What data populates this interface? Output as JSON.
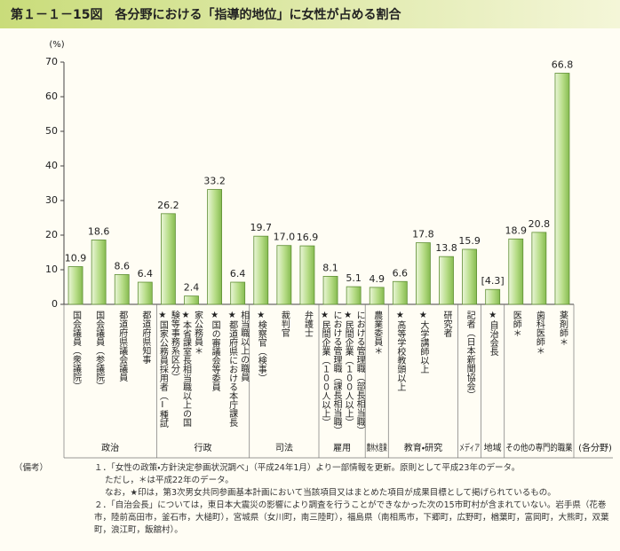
{
  "chart_data": {
    "type": "bar",
    "title": "第１－１－15図　各分野における「指導的地位」に女性が占める割合",
    "y_label": "(%)",
    "ylim": [
      0,
      70
    ],
    "yticks": [
      0,
      10,
      20,
      30,
      40,
      50,
      60,
      70
    ],
    "color": "#a8d272",
    "group_header": "(各分野)",
    "groups": [
      {
        "name": "政治",
        "categories": [
          "国会議員（衆議院）",
          "国会議員（参議院）",
          "都道府県議会議員",
          "都道府県知事"
        ],
        "values": [
          10.9,
          18.6,
          8.6,
          6.4
        ],
        "value_labels": [
          "10.9",
          "18.6",
          "8.6",
          "6.4"
        ]
      },
      {
        "name": "行政",
        "categories": [
          "★国家公務員採用者（Ⅰ種試験等事務系区分）",
          "★本省課室長相当職以上の国家公務員＊",
          "★国の審議会等委員",
          "★都道府県における本庁課長相当職以上の職員"
        ],
        "values": [
          26.2,
          2.4,
          33.2,
          6.4
        ],
        "value_labels": [
          "26.2",
          "2.4",
          "33.2",
          "6.4"
        ]
      },
      {
        "name": "司法",
        "categories": [
          "★検察官（検事）",
          "裁判官",
          "弁護士"
        ],
        "values": [
          19.7,
          17.0,
          16.9
        ],
        "value_labels": [
          "19.7",
          "17.0",
          "16.9"
        ]
      },
      {
        "name": "雇用",
        "categories": [
          "★民間企業（１００人以上）における管理職（課長相当職）",
          "★民間企業（１００人以上）における管理職（部長相当職）"
        ],
        "values": [
          8.1,
          5.1
        ],
        "value_labels": [
          "8.1",
          "5.1"
        ]
      },
      {
        "name": "農林水産業",
        "categories": [
          "農業委員＊"
        ],
        "values": [
          4.9
        ],
        "value_labels": [
          "4.9"
        ]
      },
      {
        "name": "教育・研究",
        "categories": [
          "★高等学校教頭以上",
          "★大学講師以上",
          "研究者"
        ],
        "values": [
          6.6,
          17.8,
          13.8
        ],
        "value_labels": [
          "6.6",
          "17.8",
          "13.8"
        ]
      },
      {
        "name": "メディア",
        "categories": [
          "記者（日本新聞協会）"
        ],
        "values": [
          15.9
        ],
        "value_labels": [
          "15.9"
        ]
      },
      {
        "name": "地域",
        "categories": [
          "★自治会長"
        ],
        "values": [
          4.3
        ],
        "value_labels": [
          "[4.3]"
        ]
      },
      {
        "name": "その他の専門的職業",
        "categories": [
          "医師＊",
          "歯科医師＊",
          "薬剤師＊"
        ],
        "values": [
          18.9,
          20.8,
          66.8
        ],
        "value_labels": [
          "18.9",
          "20.8",
          "66.8"
        ]
      }
    ]
  },
  "notes": {
    "label": "（備考）",
    "items": [
      "１．「女性の政策・方針決定参画状況調べ」（平成24年1月）より一部情報を更新。原則として平成23年のデータ。",
      "ただし，＊は平成22年のデータ。",
      "なお，★印は，第3次男女共同参画基本計画において当該項目又はまとめた項目が成果目標として掲げられているもの。",
      "２．「自治会長」については，東日本大震災の影響により調査を行うことができなかった次の15市町村が含まれていない。岩手県（花巻市，陸前高田市，釜石市，大槌町），宮城県（女川町，南三陸町），福島県（南相馬市，下郷町，広野町，楢葉町，富岡町，大熊町，双葉町，浪江町，飯舘村）。"
    ]
  }
}
